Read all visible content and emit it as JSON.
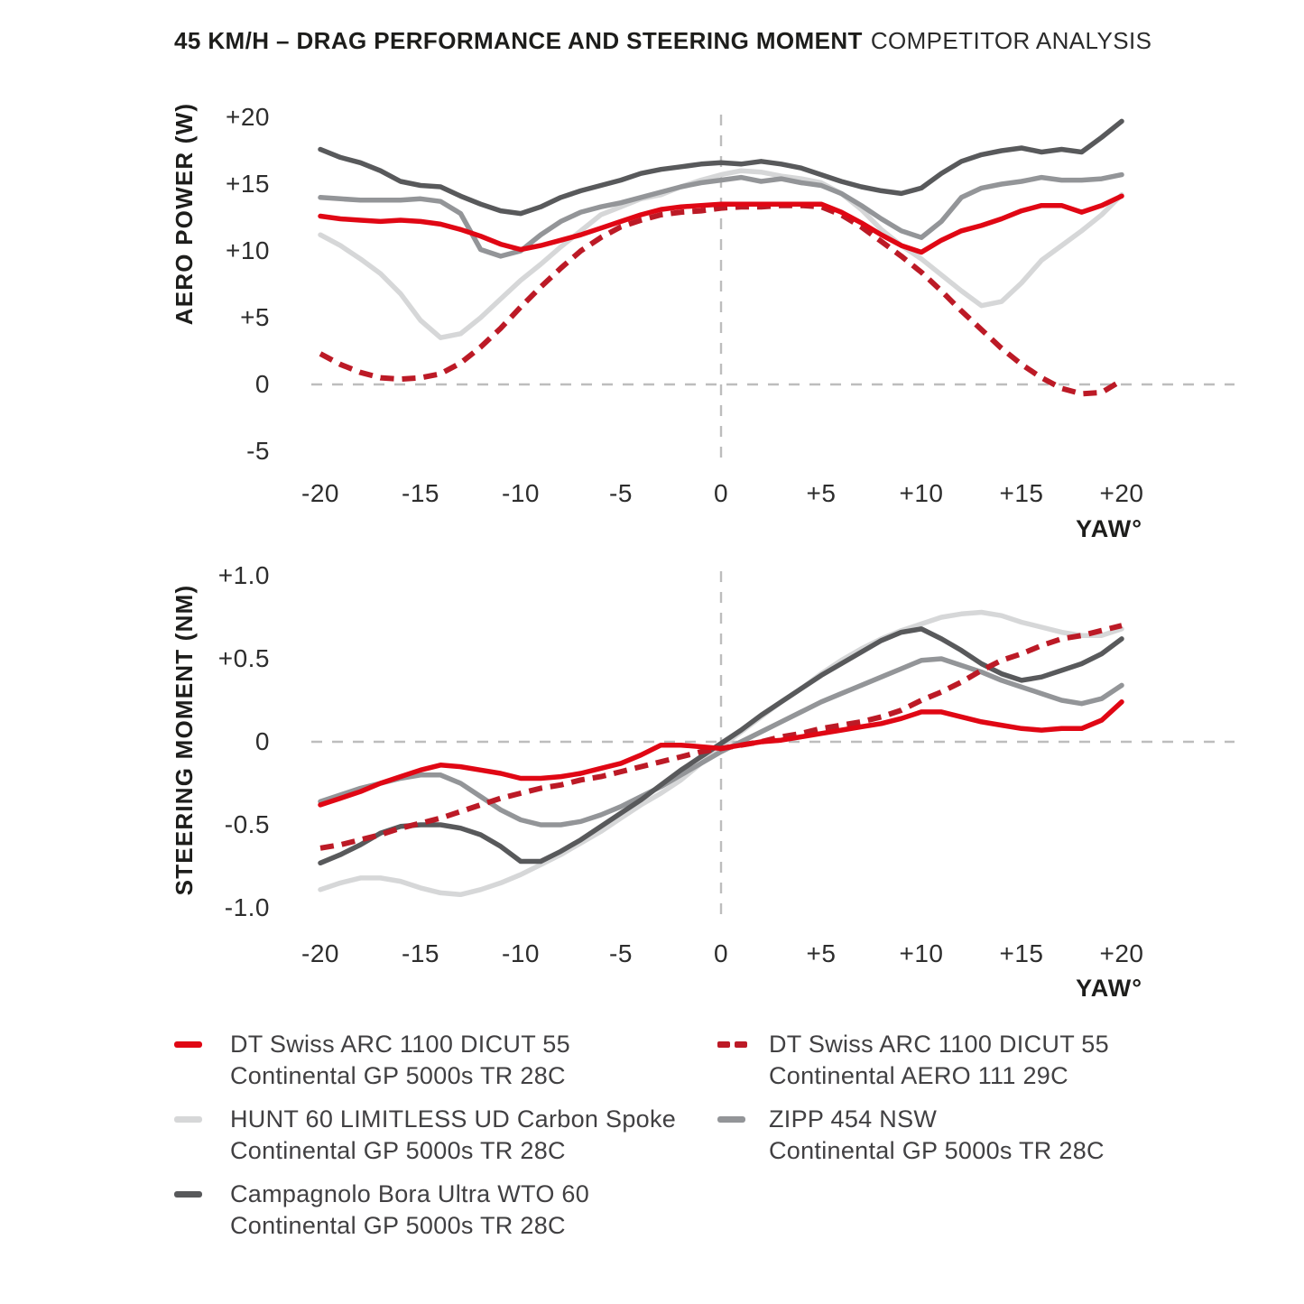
{
  "title": {
    "main": "45 KM/H – DRAG PERFORMANCE AND STEERING MOMENT",
    "suffix": "COMPETITOR ANALYSIS"
  },
  "colors": {
    "red": "#e00714",
    "dark_red": "#bc1a26",
    "dark_gray": "#58595b",
    "medium_gray": "#939598",
    "light_gray": "#d6d7d8",
    "guide": "#bdbdbd",
    "text": "#1d1d1b"
  },
  "chart_data": [
    {
      "id": "aero_power",
      "type": "line",
      "title": "45 km/h drag performance",
      "ylabel": "AERO POWER (W)",
      "xlabel": "YAW°",
      "xlim": [
        -20,
        20
      ],
      "ylim": [
        -5,
        20
      ],
      "grid": "zero-lines-dashed",
      "legend_position": "below",
      "x_start": -20,
      "x_step": 1,
      "x_ticks": [
        {
          "v": -20,
          "label": "-20"
        },
        {
          "v": -15,
          "label": "-15"
        },
        {
          "v": -10,
          "label": "-10"
        },
        {
          "v": -5,
          "label": "-5"
        },
        {
          "v": 0,
          "label": "0"
        },
        {
          "v": 5,
          "label": "+5"
        },
        {
          "v": 10,
          "label": "+10"
        },
        {
          "v": 15,
          "label": "+15"
        },
        {
          "v": 20,
          "label": "+20"
        }
      ],
      "y_ticks": [
        {
          "v": 20,
          "label": "+20"
        },
        {
          "v": 15,
          "label": "+15"
        },
        {
          "v": 10,
          "label": "+10"
        },
        {
          "v": 5,
          "label": "+5"
        },
        {
          "v": 0,
          "label": "0"
        },
        {
          "v": -5,
          "label": "-5"
        }
      ],
      "series": [
        {
          "name": "HUNT 60 LIMITLESS UD Carbon Spoke – Continental GP 5000s TR 28C",
          "color": "light_gray",
          "dashed": false,
          "values": [
            11.2,
            10.4,
            9.4,
            8.3,
            6.8,
            4.8,
            3.5,
            3.8,
            5.0,
            6.4,
            7.8,
            9.0,
            10.3,
            11.5,
            12.7,
            13.3,
            13.9,
            14.2,
            14.8,
            15.3,
            15.7,
            16.0,
            15.9,
            15.6,
            15.4,
            15.1,
            14.3,
            13.1,
            11.6,
            10.4,
            9.4,
            8.2,
            7.0,
            5.9,
            6.2,
            7.6,
            9.3,
            10.4,
            11.5,
            12.7,
            14.2
          ]
        },
        {
          "name": "ZIPP 454 NSW – Continental GP 5000s TR 28C",
          "color": "medium_gray",
          "dashed": false,
          "values": [
            14.0,
            13.9,
            13.8,
            13.8,
            13.8,
            13.9,
            13.7,
            12.8,
            10.1,
            9.6,
            10.0,
            11.2,
            12.2,
            12.9,
            13.3,
            13.6,
            14.0,
            14.4,
            14.8,
            15.1,
            15.3,
            15.5,
            15.2,
            15.4,
            15.1,
            14.9,
            14.3,
            13.4,
            12.4,
            11.5,
            11.0,
            12.2,
            14.0,
            14.7,
            15.0,
            15.2,
            15.5,
            15.3,
            15.3,
            15.4,
            15.7
          ]
        },
        {
          "name": "Campagnolo Bora Ultra WTO 60 – Continental GP 5000s TR 28C",
          "color": "dark_gray",
          "dashed": false,
          "values": [
            17.6,
            17.0,
            16.6,
            16.0,
            15.2,
            14.9,
            14.8,
            14.1,
            13.5,
            13.0,
            12.8,
            13.3,
            14.0,
            14.5,
            14.9,
            15.3,
            15.8,
            16.1,
            16.3,
            16.5,
            16.6,
            16.5,
            16.7,
            16.5,
            16.2,
            15.7,
            15.2,
            14.8,
            14.5,
            14.3,
            14.7,
            15.8,
            16.7,
            17.2,
            17.5,
            17.7,
            17.4,
            17.6,
            17.4,
            18.5,
            19.7
          ]
        },
        {
          "name": "DT Swiss ARC 1100 DICUT 55 – Continental AERO 111 29C",
          "color": "dark_red",
          "dashed": true,
          "values": [
            2.3,
            1.5,
            0.9,
            0.5,
            0.4,
            0.5,
            0.8,
            1.6,
            2.8,
            4.2,
            5.8,
            7.3,
            8.7,
            10.0,
            11.0,
            11.8,
            12.3,
            12.7,
            12.9,
            13.0,
            13.2,
            13.3,
            13.3,
            13.4,
            13.4,
            13.3,
            12.7,
            11.8,
            10.7,
            9.6,
            8.4,
            7.0,
            5.5,
            4.1,
            2.7,
            1.5,
            0.5,
            -0.3,
            -0.7,
            -0.6,
            0.3
          ]
        },
        {
          "name": "DT Swiss ARC 1100 DICUT 55 – Continental GP 5000s TR 28C",
          "color": "red",
          "dashed": false,
          "values": [
            12.6,
            12.4,
            12.3,
            12.2,
            12.3,
            12.2,
            12.0,
            11.6,
            11.1,
            10.5,
            10.1,
            10.4,
            10.8,
            11.2,
            11.7,
            12.2,
            12.7,
            13.1,
            13.3,
            13.4,
            13.5,
            13.5,
            13.5,
            13.5,
            13.5,
            13.5,
            12.9,
            12.1,
            11.2,
            10.4,
            9.9,
            10.8,
            11.5,
            11.9,
            12.4,
            13.0,
            13.4,
            13.4,
            12.9,
            13.4,
            14.1
          ]
        }
      ]
    },
    {
      "id": "steering_moment",
      "type": "line",
      "title": "45 km/h steering moment",
      "ylabel": "STEERING MOMENT (NM)",
      "xlabel": "YAW°",
      "xlim": [
        -20,
        20
      ],
      "ylim": [
        -1.0,
        1.0
      ],
      "grid": "zero-lines-dashed",
      "legend_position": "below",
      "x_start": -20,
      "x_step": 1,
      "x_ticks": [
        {
          "v": -20,
          "label": "-20"
        },
        {
          "v": -15,
          "label": "-15"
        },
        {
          "v": -10,
          "label": "-10"
        },
        {
          "v": -5,
          "label": "-5"
        },
        {
          "v": 0,
          "label": "0"
        },
        {
          "v": 5,
          "label": "+5"
        },
        {
          "v": 10,
          "label": "+10"
        },
        {
          "v": 15,
          "label": "+15"
        },
        {
          "v": 20,
          "label": "+20"
        }
      ],
      "y_ticks": [
        {
          "v": 1.0,
          "label": "+1.0"
        },
        {
          "v": 0.5,
          "label": "+0.5"
        },
        {
          "v": 0,
          "label": "0"
        },
        {
          "v": -0.5,
          "label": "-0.5"
        },
        {
          "v": -1.0,
          "label": "-1.0"
        }
      ],
      "series": [
        {
          "name": "HUNT 60 LIMITLESS UD Carbon Spoke – Continental GP 5000s TR 28C",
          "color": "light_gray",
          "dashed": false,
          "values": [
            -0.89,
            -0.85,
            -0.82,
            -0.82,
            -0.84,
            -0.88,
            -0.91,
            -0.92,
            -0.89,
            -0.85,
            -0.8,
            -0.74,
            -0.68,
            -0.61,
            -0.54,
            -0.46,
            -0.38,
            -0.31,
            -0.23,
            -0.13,
            -0.03,
            0.06,
            0.15,
            0.24,
            0.32,
            0.41,
            0.49,
            0.56,
            0.62,
            0.67,
            0.71,
            0.75,
            0.77,
            0.78,
            0.76,
            0.72,
            0.69,
            0.66,
            0.64,
            0.64,
            0.68
          ]
        },
        {
          "name": "ZIPP 454 NSW – Continental GP 5000s TR 28C",
          "color": "medium_gray",
          "dashed": false,
          "values": [
            -0.36,
            -0.32,
            -0.28,
            -0.25,
            -0.22,
            -0.2,
            -0.2,
            -0.25,
            -0.33,
            -0.41,
            -0.47,
            -0.5,
            -0.5,
            -0.48,
            -0.44,
            -0.39,
            -0.33,
            -0.27,
            -0.2,
            -0.13,
            -0.06,
            0.0,
            0.06,
            0.12,
            0.18,
            0.24,
            0.29,
            0.34,
            0.39,
            0.44,
            0.49,
            0.5,
            0.46,
            0.42,
            0.37,
            0.33,
            0.29,
            0.25,
            0.23,
            0.26,
            0.34
          ]
        },
        {
          "name": "Campagnolo Bora Ultra WTO 60 – Continental GP 5000s TR 28C",
          "color": "dark_gray",
          "dashed": false,
          "values": [
            -0.73,
            -0.68,
            -0.62,
            -0.55,
            -0.51,
            -0.5,
            -0.5,
            -0.52,
            -0.56,
            -0.63,
            -0.72,
            -0.72,
            -0.66,
            -0.59,
            -0.51,
            -0.43,
            -0.35,
            -0.26,
            -0.17,
            -0.09,
            -0.01,
            0.07,
            0.16,
            0.24,
            0.32,
            0.4,
            0.47,
            0.54,
            0.61,
            0.66,
            0.68,
            0.62,
            0.55,
            0.47,
            0.41,
            0.37,
            0.39,
            0.43,
            0.47,
            0.53,
            0.62
          ]
        },
        {
          "name": "DT Swiss ARC 1100 DICUT 55 – Continental AERO 111 29C",
          "color": "dark_red",
          "dashed": true,
          "values": [
            -0.64,
            -0.62,
            -0.59,
            -0.56,
            -0.52,
            -0.49,
            -0.46,
            -0.42,
            -0.38,
            -0.34,
            -0.31,
            -0.28,
            -0.26,
            -0.23,
            -0.21,
            -0.18,
            -0.15,
            -0.12,
            -0.09,
            -0.06,
            -0.04,
            -0.02,
            0.0,
            0.03,
            0.05,
            0.08,
            0.1,
            0.12,
            0.15,
            0.19,
            0.25,
            0.3,
            0.36,
            0.43,
            0.49,
            0.53,
            0.58,
            0.62,
            0.64,
            0.67,
            0.7
          ]
        },
        {
          "name": "DT Swiss ARC 1100 DICUT 55 – Continental GP 5000s TR 28C",
          "color": "red",
          "dashed": false,
          "values": [
            -0.38,
            -0.34,
            -0.3,
            -0.25,
            -0.21,
            -0.17,
            -0.14,
            -0.15,
            -0.17,
            -0.19,
            -0.22,
            -0.22,
            -0.21,
            -0.19,
            -0.16,
            -0.13,
            -0.08,
            -0.02,
            -0.02,
            -0.03,
            -0.04,
            -0.02,
            0.0,
            0.01,
            0.03,
            0.05,
            0.07,
            0.09,
            0.11,
            0.14,
            0.18,
            0.18,
            0.15,
            0.12,
            0.1,
            0.08,
            0.07,
            0.08,
            0.08,
            0.13,
            0.24
          ]
        }
      ]
    }
  ],
  "legend": {
    "items": [
      {
        "col": 0,
        "row": 0,
        "swatch": "red-solid",
        "color": "red",
        "dashed": false,
        "line1": "DT Swiss ARC 1100 DICUT 55",
        "line2": "Continental GP 5000s TR 28C"
      },
      {
        "col": 1,
        "row": 0,
        "swatch": "red-dashed",
        "color": "dark_red",
        "dashed": true,
        "line1": "DT Swiss ARC 1100 DICUT 55",
        "line2": "Continental AERO 111 29C"
      },
      {
        "col": 0,
        "row": 1,
        "swatch": "light-gray-solid",
        "color": "light_gray",
        "dashed": false,
        "line1": "HUNT 60 LIMITLESS UD Carbon Spoke",
        "line2": "Continental GP 5000s TR 28C"
      },
      {
        "col": 1,
        "row": 1,
        "swatch": "medium-gray-solid",
        "color": "medium_gray",
        "dashed": false,
        "line1": "ZIPP 454 NSW",
        "line2": "Continental GP 5000s TR 28C"
      },
      {
        "col": 0,
        "row": 2,
        "swatch": "dark-gray-solid",
        "color": "dark_gray",
        "dashed": false,
        "line1": "Campagnolo Bora Ultra WTO 60",
        "line2": "Continental GP 5000s TR 28C"
      }
    ]
  }
}
